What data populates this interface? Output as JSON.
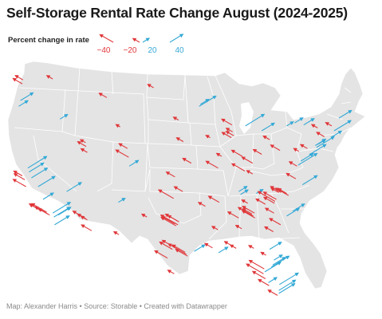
{
  "header": {
    "title": "Self-Storage Rental Rate Change August (2024-2025)"
  },
  "legend": {
    "label": "Percent change in rate",
    "items": [
      {
        "label": "−40",
        "value": -40,
        "color": "#e0373a"
      },
      {
        "label": "−20",
        "value": -20,
        "color": "#e0373a"
      },
      {
        "label": "20",
        "value": 20,
        "color": "#34a9d6"
      },
      {
        "label": "40",
        "value": 40,
        "color": "#34a9d6"
      }
    ]
  },
  "colors": {
    "decrease": "#e0373a",
    "increase": "#34a9d6",
    "land": "#e4e4e4",
    "borders": "#ffffff"
  },
  "footer": {
    "text": "Map: Alexander Harris • Source: Storable • Created with Datawrapper"
  },
  "map_data": {
    "projection": "albers-usa",
    "encoding": "arrow length and direction = percent change; red = decrease, blue = increase",
    "points": [
      {
        "lon": -122.3,
        "lat": 47.6,
        "v": -18
      },
      {
        "lon": -122.4,
        "lat": 47.2,
        "v": -22
      },
      {
        "lon": -117.4,
        "lat": 47.7,
        "v": -14
      },
      {
        "lon": -122.7,
        "lat": 45.5,
        "v": 30
      },
      {
        "lon": -123.0,
        "lat": 44.9,
        "v": 22
      },
      {
        "lon": -116.2,
        "lat": 43.6,
        "v": 18
      },
      {
        "lon": -111.9,
        "lat": 40.8,
        "v": -20
      },
      {
        "lon": -111.7,
        "lat": 40.2,
        "v": -15
      },
      {
        "lon": -112.0,
        "lat": 41.2,
        "v": -12
      },
      {
        "lon": -122.4,
        "lat": 37.8,
        "v": -20
      },
      {
        "lon": -122.0,
        "lat": 37.4,
        "v": -25
      },
      {
        "lon": -121.5,
        "lat": 38.6,
        "v": 45
      },
      {
        "lon": -121.3,
        "lat": 38.2,
        "v": 35
      },
      {
        "lon": -120.9,
        "lat": 37.6,
        "v": 38
      },
      {
        "lon": -121.8,
        "lat": 36.7,
        "v": -30
      },
      {
        "lon": -119.8,
        "lat": 36.7,
        "v": 40
      },
      {
        "lon": -119.0,
        "lat": 35.4,
        "v": 25
      },
      {
        "lon": -119.7,
        "lat": 34.4,
        "v": -22
      },
      {
        "lon": -119.2,
        "lat": 34.2,
        "v": -28
      },
      {
        "lon": -118.4,
        "lat": 34.1,
        "v": -35
      },
      {
        "lon": -118.2,
        "lat": 33.9,
        "v": -30
      },
      {
        "lon": -117.9,
        "lat": 33.8,
        "v": -26
      },
      {
        "lon": -117.4,
        "lat": 34.0,
        "v": 42
      },
      {
        "lon": -117.2,
        "lat": 33.6,
        "v": 38
      },
      {
        "lon": -117.1,
        "lat": 32.8,
        "v": 35
      },
      {
        "lon": -116.5,
        "lat": 33.8,
        "v": 30
      },
      {
        "lon": -115.1,
        "lat": 36.2,
        "v": 35
      },
      {
        "lon": -112.1,
        "lat": 33.5,
        "v": -28
      },
      {
        "lon": -111.9,
        "lat": 33.4,
        "v": -20
      },
      {
        "lon": -111.7,
        "lat": 33.3,
        "v": -15
      },
      {
        "lon": -111.0,
        "lat": 32.2,
        "v": -24
      },
      {
        "lon": -106.6,
        "lat": 35.1,
        "v": 16
      },
      {
        "lon": -106.5,
        "lat": 31.8,
        "v": -12
      },
      {
        "lon": -104.9,
        "lat": 39.7,
        "v": -30
      },
      {
        "lon": -104.8,
        "lat": 38.8,
        "v": 22
      },
      {
        "lon": -105.1,
        "lat": 40.6,
        "v": -20
      },
      {
        "lon": -108.5,
        "lat": 45.8,
        "v": -18
      },
      {
        "lon": -106.3,
        "lat": 42.8,
        "v": -10
      },
      {
        "lon": -100.8,
        "lat": 46.8,
        "v": -14
      },
      {
        "lon": -96.7,
        "lat": 43.5,
        "v": -12
      },
      {
        "lon": -95.9,
        "lat": 41.3,
        "v": -16
      },
      {
        "lon": -97.3,
        "lat": 37.7,
        "v": -20
      },
      {
        "lon": -97.5,
        "lat": 35.5,
        "v": -35
      },
      {
        "lon": -96.0,
        "lat": 36.2,
        "v": -20
      },
      {
        "lon": -96.8,
        "lat": 32.8,
        "v": -40
      },
      {
        "lon": -97.1,
        "lat": 32.7,
        "v": -35
      },
      {
        "lon": -97.3,
        "lat": 32.9,
        "v": -30
      },
      {
        "lon": -96.6,
        "lat": 33.1,
        "v": -32
      },
      {
        "lon": -96.9,
        "lat": 33.2,
        "v": -22
      },
      {
        "lon": -97.7,
        "lat": 30.3,
        "v": -30
      },
      {
        "lon": -97.6,
        "lat": 30.6,
        "v": -25
      },
      {
        "lon": -98.5,
        "lat": 29.4,
        "v": -30
      },
      {
        "lon": -95.4,
        "lat": 29.8,
        "v": -42
      },
      {
        "lon": -95.6,
        "lat": 30.0,
        "v": -30
      },
      {
        "lon": -95.2,
        "lat": 29.6,
        "v": -28
      },
      {
        "lon": -94.1,
        "lat": 30.1,
        "v": 25
      },
      {
        "lon": -97.4,
        "lat": 27.8,
        "v": -15
      },
      {
        "lon": -101.9,
        "lat": 33.6,
        "v": -12
      },
      {
        "lon": -93.3,
        "lat": 44.9,
        "v": 40
      },
      {
        "lon": -93.1,
        "lat": 45.1,
        "v": 20
      },
      {
        "lon": -91.5,
        "lat": 41.7,
        "v": -10
      },
      {
        "lon": -94.6,
        "lat": 39.1,
        "v": -20
      },
      {
        "lon": -90.2,
        "lat": 38.6,
        "v": -28
      },
      {
        "lon": -92.3,
        "lat": 34.7,
        "v": -16
      },
      {
        "lon": -90.1,
        "lat": 29.95,
        "v": 22
      },
      {
        "lon": -91.1,
        "lat": 30.45,
        "v": -18
      },
      {
        "lon": -90.2,
        "lat": 32.3,
        "v": -14
      },
      {
        "lon": -87.9,
        "lat": 43.0,
        "v": -24
      },
      {
        "lon": -87.6,
        "lat": 41.9,
        "v": -18
      },
      {
        "lon": -88.0,
        "lat": 41.7,
        "v": -22
      },
      {
        "lon": -87.8,
        "lat": 42.3,
        "v": -15
      },
      {
        "lon": -89.6,
        "lat": 39.8,
        "v": -12
      },
      {
        "lon": -86.2,
        "lat": 39.8,
        "v": -25
      },
      {
        "lon": -85.8,
        "lat": 38.3,
        "v": -30
      },
      {
        "lon": -84.5,
        "lat": 39.1,
        "v": -25
      },
      {
        "lon": -84.5,
        "lat": 38.0,
        "v": -14
      },
      {
        "lon": -83.0,
        "lat": 40.0,
        "v": -20
      },
      {
        "lon": -81.7,
        "lat": 41.5,
        "v": -15
      },
      {
        "lon": -83.0,
        "lat": 42.4,
        "v": 30
      },
      {
        "lon": -85.7,
        "lat": 42.9,
        "v": 45
      },
      {
        "lon": -86.8,
        "lat": 36.2,
        "v": 20
      },
      {
        "lon": -86.5,
        "lat": 35.9,
        "v": 18
      },
      {
        "lon": -90.0,
        "lat": 35.1,
        "v": -25
      },
      {
        "lon": -85.3,
        "lat": 35.0,
        "v": -14
      },
      {
        "lon": -83.9,
        "lat": 36.0,
        "v": 16
      },
      {
        "lon": -86.8,
        "lat": 33.5,
        "v": -25
      },
      {
        "lon": -86.3,
        "lat": 32.4,
        "v": -14
      },
      {
        "lon": -88.0,
        "lat": 30.7,
        "v": -16
      },
      {
        "lon": -84.4,
        "lat": 33.7,
        "v": -35
      },
      {
        "lon": -84.2,
        "lat": 34.0,
        "v": -28
      },
      {
        "lon": -84.6,
        "lat": 33.9,
        "v": -22
      },
      {
        "lon": -84.1,
        "lat": 33.5,
        "v": -30
      },
      {
        "lon": -81.1,
        "lat": 32.1,
        "v": -20
      },
      {
        "lon": -80.8,
        "lat": 35.2,
        "v": -40
      },
      {
        "lon": -80.6,
        "lat": 35.4,
        "v": -30
      },
      {
        "lon": -80.9,
        "lat": 35.0,
        "v": -25
      },
      {
        "lon": -78.6,
        "lat": 35.8,
        "v": -30
      },
      {
        "lon": -78.9,
        "lat": 36.0,
        "v": -20
      },
      {
        "lon": -79.8,
        "lat": 36.1,
        "v": -25
      },
      {
        "lon": -80.2,
        "lat": 36.1,
        "v": -18
      },
      {
        "lon": -82.4,
        "lat": 34.9,
        "v": -22
      },
      {
        "lon": -81.0,
        "lat": 34.0,
        "v": -20
      },
      {
        "lon": -79.9,
        "lat": 32.8,
        "v": -26
      },
      {
        "lon": -78.9,
        "lat": 33.7,
        "v": 30
      },
      {
        "lon": -77.9,
        "lat": 34.2,
        "v": 28
      },
      {
        "lon": -77.4,
        "lat": 37.5,
        "v": -22
      },
      {
        "lon": -76.3,
        "lat": 36.9,
        "v": 35
      },
      {
        "lon": -77.0,
        "lat": 38.9,
        "v": 45
      },
      {
        "lon": -77.2,
        "lat": 38.8,
        "v": -18
      },
      {
        "lon": -76.6,
        "lat": 39.3,
        "v": 30
      },
      {
        "lon": -75.2,
        "lat": 39.95,
        "v": 40
      },
      {
        "lon": -75.5,
        "lat": 40.6,
        "v": -16
      },
      {
        "lon": -76.9,
        "lat": 40.3,
        "v": -12
      },
      {
        "lon": -80.0,
        "lat": 40.4,
        "v": -22
      },
      {
        "lon": -74.0,
        "lat": 40.7,
        "v": 42
      },
      {
        "lon": -74.2,
        "lat": 40.9,
        "v": 25
      },
      {
        "lon": -73.8,
        "lat": 41.0,
        "v": 18
      },
      {
        "lon": -73.8,
        "lat": 42.7,
        "v": -14
      },
      {
        "lon": -76.1,
        "lat": 43.0,
        "v": 25
      },
      {
        "lon": -77.6,
        "lat": 43.2,
        "v": 20
      },
      {
        "lon": -78.9,
        "lat": 42.9,
        "v": 16
      },
      {
        "lon": -72.7,
        "lat": 41.8,
        "v": -18
      },
      {
        "lon": -71.4,
        "lat": 41.8,
        "v": 22
      },
      {
        "lon": -71.1,
        "lat": 42.4,
        "v": 40
      },
      {
        "lon": -71.5,
        "lat": 42.9,
        "v": -14
      },
      {
        "lon": -70.3,
        "lat": 43.7,
        "v": 30
      },
      {
        "lon": -81.7,
        "lat": 30.3,
        "v": 28
      },
      {
        "lon": -82.3,
        "lat": 29.7,
        "v": -12
      },
      {
        "lon": -81.4,
        "lat": 28.5,
        "v": 42
      },
      {
        "lon": -81.2,
        "lat": 28.7,
        "v": 30
      },
      {
        "lon": -81.0,
        "lat": 29.2,
        "v": 20
      },
      {
        "lon": -82.5,
        "lat": 28.0,
        "v": 38
      },
      {
        "lon": -82.7,
        "lat": 27.8,
        "v": -40
      },
      {
        "lon": -82.4,
        "lat": 27.3,
        "v": -30
      },
      {
        "lon": -82.6,
        "lat": 28.3,
        "v": -35
      },
      {
        "lon": -81.8,
        "lat": 26.6,
        "v": -25
      },
      {
        "lon": -81.9,
        "lat": 26.9,
        "v": 20
      },
      {
        "lon": -80.1,
        "lat": 26.7,
        "v": 45
      },
      {
        "lon": -80.2,
        "lat": 26.1,
        "v": 40
      },
      {
        "lon": -80.2,
        "lat": 25.8,
        "v": 38
      },
      {
        "lon": -80.4,
        "lat": 25.6,
        "v": -22
      },
      {
        "lon": -84.3,
        "lat": 30.4,
        "v": -12
      },
      {
        "lon": -87.2,
        "lat": 30.4,
        "v": -14
      }
    ]
  }
}
